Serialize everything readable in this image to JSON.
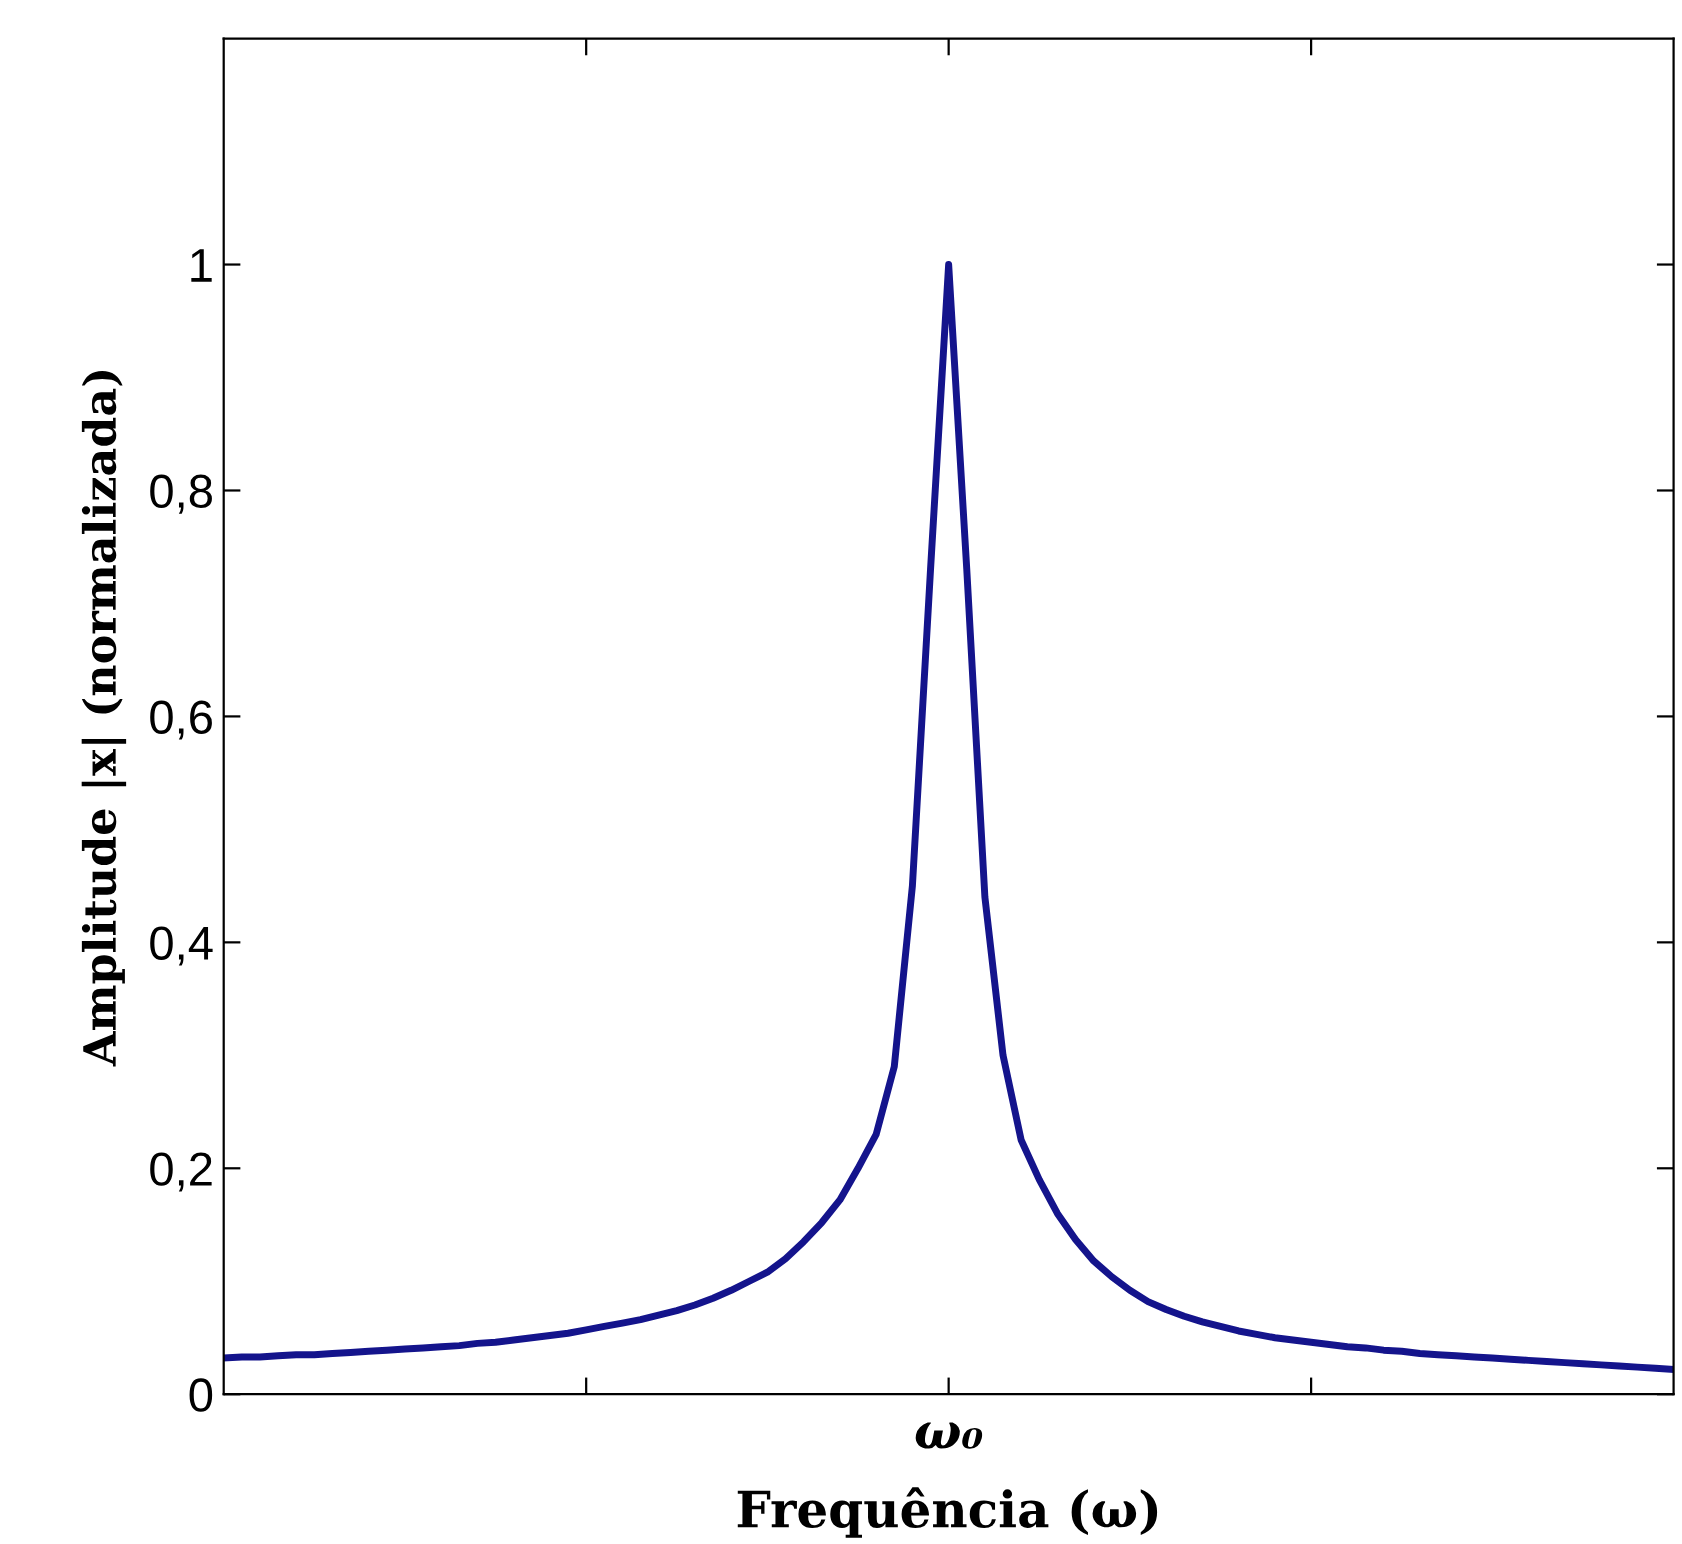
{
  "chart_data": {
    "type": "line",
    "xlabel": "Frequência (ω)",
    "ylabel": "Amplitude |x| (normalizada)",
    "annotations": [
      "ω₀"
    ],
    "categories": [
      null,
      null,
      null,
      null,
      null,
      null,
      null,
      null,
      null,
      null,
      null,
      null,
      null,
      null,
      null,
      null,
      null,
      null,
      null,
      null,
      null,
      null,
      null,
      null,
      null,
      null,
      null,
      null,
      null,
      null,
      null,
      null,
      null,
      null,
      null,
      null,
      null,
      null,
      null,
      null,
      null,
      null,
      null,
      null,
      null,
      null,
      null,
      null,
      null,
      null,
      null,
      null,
      null,
      null,
      null,
      null,
      null,
      null,
      null,
      null,
      null,
      null,
      null,
      null,
      null,
      null,
      null,
      null,
      null,
      null,
      null,
      null,
      null,
      null,
      null,
      null,
      null,
      null,
      null,
      null,
      null
    ],
    "ylim": [
      0,
      1.2
    ],
    "yticks": [
      {
        "value": 0,
        "label": "0"
      },
      {
        "value": 0.2,
        "label": "0,2"
      },
      {
        "value": 0.4,
        "label": "0,4"
      },
      {
        "value": 0.6,
        "label": "0,6"
      },
      {
        "value": 0.8,
        "label": "0,8"
      },
      {
        "value": 1,
        "label": "1"
      }
    ],
    "series": [
      {
        "color": "#14148c",
        "values": [
          0.032,
          0.033,
          0.033,
          0.034,
          0.035,
          0.035,
          0.036,
          0.037,
          0.038,
          0.039,
          0.04,
          0.041,
          0.042,
          0.043,
          0.045,
          0.046,
          0.048,
          0.05,
          0.052,
          0.054,
          0.057,
          0.06,
          0.063,
          0.066,
          0.07,
          0.074,
          0.079,
          0.085,
          0.092,
          0.1,
          0.108,
          0.12,
          0.135,
          0.152,
          0.172,
          0.2,
          0.23,
          0.29,
          0.45,
          0.73,
          1.0,
          0.73,
          0.44,
          0.3,
          0.225,
          0.19,
          0.16,
          0.137,
          0.118,
          0.104,
          0.092,
          0.082,
          0.075,
          0.069,
          0.064,
          0.06,
          0.056,
          0.053,
          0.05,
          0.048,
          0.046,
          0.044,
          0.042,
          0.041,
          0.039,
          0.038,
          0.036,
          0.035,
          0.034,
          0.033,
          0.032,
          0.031,
          0.03,
          0.029,
          0.028,
          0.027,
          0.026,
          0.025,
          0.024,
          0.023,
          0.022
        ]
      }
    ]
  }
}
